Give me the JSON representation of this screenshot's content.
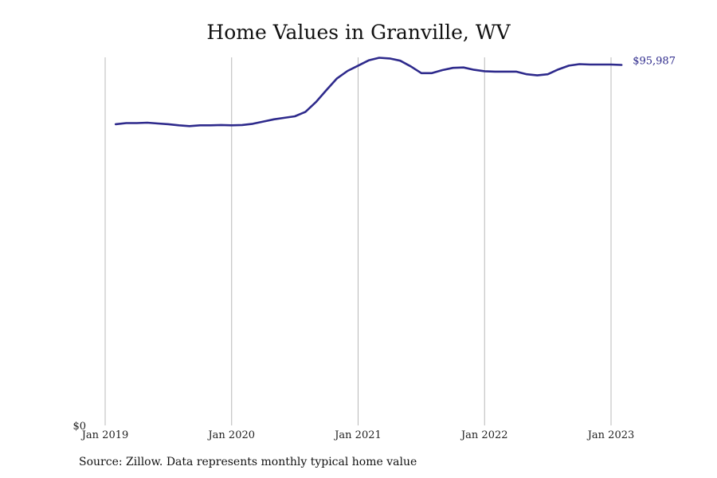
{
  "chart_data": {
    "type": "line",
    "title": "Home Values in Granville, WV",
    "xlabel": "",
    "ylabel": "",
    "x_tick_labels": [
      "Jan 2019",
      "Jan 2020",
      "Jan 2021",
      "Jan 2022",
      "Jan 2023"
    ],
    "y_tick_labels": [
      "$0"
    ],
    "ylim": [
      0,
      98000
    ],
    "grid": {
      "vertical": true,
      "horizontal": false
    },
    "legend": "none",
    "end_label": "$95,987",
    "source": "Source: Zillow. Data represents monthly typical home value",
    "series": [
      {
        "color": "#2e2a8c",
        "x": [
          "2019-02",
          "2019-03",
          "2019-04",
          "2019-05",
          "2019-06",
          "2019-07",
          "2019-08",
          "2019-09",
          "2019-10",
          "2019-11",
          "2019-12",
          "2020-01",
          "2020-02",
          "2020-03",
          "2020-04",
          "2020-05",
          "2020-06",
          "2020-07",
          "2020-08",
          "2020-09",
          "2020-10",
          "2020-11",
          "2020-12",
          "2021-01",
          "2021-02",
          "2021-03",
          "2021-04",
          "2021-05",
          "2021-06",
          "2021-07",
          "2021-08",
          "2021-09",
          "2021-10",
          "2021-11",
          "2021-12",
          "2022-01",
          "2022-02",
          "2022-03",
          "2022-04",
          "2022-05",
          "2022-06",
          "2022-07",
          "2022-08",
          "2022-09",
          "2022-10",
          "2022-11",
          "2022-12",
          "2023-01",
          "2023-02"
        ],
        "values": [
          80200,
          80500,
          80500,
          80600,
          80400,
          80200,
          79900,
          79700,
          79900,
          79900,
          80000,
          79900,
          80000,
          80300,
          80900,
          81500,
          81900,
          82300,
          83500,
          86100,
          89300,
          92400,
          94400,
          95800,
          97200,
          97900,
          97700,
          97100,
          95600,
          93800,
          93800,
          94600,
          95200,
          95300,
          94700,
          94300,
          94200,
          94200,
          94200,
          93500,
          93200,
          93500,
          94800,
          95800,
          96200,
          96100,
          96100,
          96100,
          95987
        ]
      }
    ]
  }
}
